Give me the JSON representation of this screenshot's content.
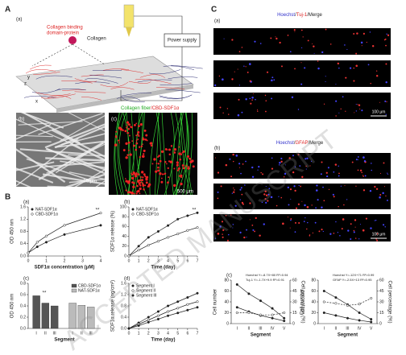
{
  "figure": {
    "label_A": "A",
    "label_B": "B",
    "label_C": "C",
    "A_a": "(a)",
    "collagen_binding": [
      "Collagen binding",
      "domain-protein"
    ],
    "collagen": "Collagen",
    "power_supply": "Power supply",
    "axis_x": "x",
    "axis_y": "y",
    "axis_z": "z",
    "A_b": "(b)",
    "sem_scale": "10 μm",
    "A_c": "(c)",
    "fluor_title": [
      "Collagen fiber",
      "/CBD-SDF1α"
    ],
    "fluor_scale": "500 μm",
    "C_a": "(a)",
    "tuj_title": [
      "Hoechst",
      "/",
      "Tuj-1",
      "/Merge"
    ],
    "tuj_scale": "100 μm",
    "C_b": "(b)",
    "gfap_title": [
      "Hoechst",
      "/",
      "GFAP",
      "/Merge"
    ],
    "gfap_scale": "100 μm",
    "watermark": "ACCEPTED MANUSCRIPT"
  },
  "chart_data": [
    {
      "type": "line",
      "panel": "(a)",
      "x_label": "SDF1α concentration (μM)",
      "y_label": "OD 450 nm",
      "x": [
        0,
        0.5,
        1,
        2,
        4
      ],
      "xlim": [
        0,
        4
      ],
      "xticks": [
        0,
        1,
        2,
        3,
        4
      ],
      "ylim": [
        0,
        1.6
      ],
      "yticks": [
        {
          "value": 0,
          "label": "0.0"
        },
        0.4,
        0.8,
        1.2,
        1.6
      ],
      "series": [
        {
          "name": "NAT-SDF1α",
          "color": "#222",
          "marker": "filled",
          "values": [
            0.1,
            0.3,
            0.45,
            0.7,
            1.0
          ]
        },
        {
          "name": "CBD-SDF1α",
          "color": "#222",
          "marker": "open",
          "values": [
            0.1,
            0.45,
            0.65,
            1.0,
            1.4
          ]
        }
      ],
      "annotations": [
        "**"
      ]
    },
    {
      "type": "line",
      "panel": "(b)",
      "x_label": "Time (day)",
      "y_label": "SDF1α release (%)",
      "x": [
        0,
        1,
        2,
        3,
        4,
        5,
        6,
        7
      ],
      "xlim": [
        0,
        7
      ],
      "xticks": [
        0,
        1,
        2,
        3,
        4,
        5,
        6,
        7
      ],
      "ylim": [
        0,
        100
      ],
      "yticks": [
        0,
        20,
        40,
        60,
        80,
        100
      ],
      "series": [
        {
          "name": "NAT-SDF1α",
          "color": "#222",
          "marker": "filled",
          "values": [
            0,
            20,
            38,
            50,
            62,
            75,
            82,
            88
          ]
        },
        {
          "name": "CBD-SDF1α",
          "color": "#222",
          "marker": "open",
          "values": [
            0,
            12,
            22,
            30,
            38,
            45,
            52,
            58
          ]
        }
      ],
      "annotations": [
        "**"
      ]
    },
    {
      "type": "bar",
      "panel": "(c)",
      "x_label": "Segment",
      "y_label": "OD 450 nm",
      "categories": [
        "I",
        "II",
        "III"
      ],
      "ylim": [
        0,
        0.8
      ],
      "yticks": [
        {
          "value": 0,
          "label": "0.0"
        },
        0.2,
        0.4,
        0.6,
        0.8
      ],
      "series": [
        {
          "name": "CBD-SDF1α",
          "color": "#555555",
          "values": [
            0.58,
            0.45,
            0.4
          ]
        },
        {
          "name": "NAT-SDF1α",
          "color": "#bbbbbb",
          "values": [
            0.45,
            0.41,
            0.38
          ]
        }
      ],
      "annotations": [
        "**"
      ]
    },
    {
      "type": "line",
      "panel": "(d)",
      "x_label": "Time (day)",
      "y_label": "SDF1α release (ng/cm²)",
      "x": [
        0,
        1,
        2,
        3,
        4,
        5,
        6,
        7
      ],
      "xlim": [
        0,
        7
      ],
      "xticks": [
        0,
        1,
        2,
        3,
        4,
        5,
        6,
        7
      ],
      "ylim": [
        0,
        1.6
      ],
      "yticks": [
        {
          "value": 0,
          "label": "0.0"
        },
        0.4,
        0.8,
        1.2,
        1.6
      ],
      "series": [
        {
          "name": "Segment I",
          "color": "#222",
          "marker": "filled",
          "values": [
            0,
            0.2,
            0.4,
            0.6,
            0.8,
            0.95,
            1.1,
            1.25
          ]
        },
        {
          "name": "Segment II",
          "color": "#222",
          "marker": "open",
          "values": [
            0,
            0.15,
            0.3,
            0.45,
            0.6,
            0.72,
            0.85,
            0.95
          ]
        },
        {
          "name": "Segment III",
          "color": "#222",
          "marker": "filled",
          "values": [
            0,
            0.1,
            0.22,
            0.33,
            0.45,
            0.55,
            0.65,
            0.75
          ]
        }
      ]
    },
    {
      "type": "line",
      "panel": "(c)",
      "x_label": "Segment",
      "y_label": "Cell number",
      "y2_label": "Cell percentage (%)",
      "categories": [
        "I",
        "II",
        "III",
        "IV",
        "V"
      ],
      "ylim": [
        0,
        80
      ],
      "yticks": [
        0,
        20,
        40,
        60,
        80
      ],
      "y2lim": [
        0,
        60
      ],
      "y2ticks": [
        0,
        15,
        30,
        45,
        60
      ],
      "series": [
        {
          "name": "Hoechst",
          "color": "#222",
          "marker": "filled",
          "values": [
            72,
            55,
            42,
            28,
            10
          ]
        },
        {
          "name": "Tuj-1",
          "color": "#222",
          "marker": "filled",
          "values": [
            30,
            22,
            15,
            10,
            5
          ]
        },
        {
          "color": "#222",
          "marker": "open",
          "dash": true,
          "axis": "y2",
          "values": [
            15,
            15,
            12,
            12,
            15
          ]
        }
      ],
      "annotations": [
        "Hoechst Y=-8.7X+80  R²=0.94",
        "Tuj-1  Y=-1.7X+9.9  R²=0.91"
      ]
    },
    {
      "type": "line",
      "x_label": "Segment",
      "y_label": "Cell number",
      "y2_label": "Cell percentage (%)",
      "categories": [
        "I",
        "II",
        "III",
        "IV",
        "V"
      ],
      "ylim": [
        0,
        80
      ],
      "yticks": [
        0,
        20,
        40,
        60,
        80
      ],
      "y2lim": [
        0,
        60
      ],
      "y2ticks": [
        0,
        15,
        30,
        45,
        60
      ],
      "series": [
        {
          "name": "Hoechst",
          "color": "#222",
          "marker": "filled",
          "values": [
            60,
            48,
            35,
            20,
            8
          ]
        },
        {
          "name": "GFAP",
          "color": "#222",
          "marker": "filled",
          "values": [
            20,
            15,
            10,
            6,
            3
          ]
        },
        {
          "color": "#222",
          "marker": "open",
          "dash": true,
          "axis": "y2",
          "values": [
            30,
            28,
            25,
            27,
            35
          ]
        }
      ],
      "annotations": [
        "Hoechst Y=-12X+71  R²=0.99",
        "GFAP Y=-2.5X+13  R²=0.95"
      ]
    }
  ]
}
